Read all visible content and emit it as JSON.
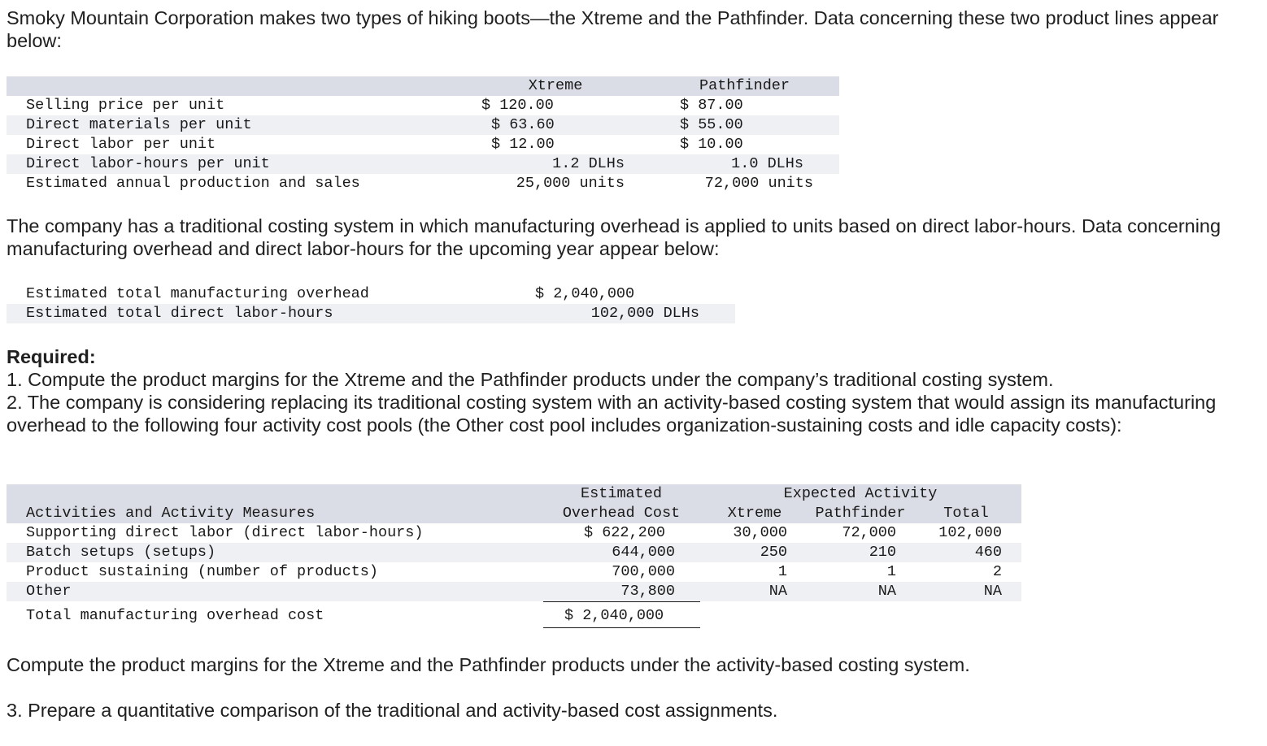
{
  "intro": "Smoky Mountain Corporation makes two types of hiking boots—the Xtreme and the Pathfinder. Data concerning these two product lines appear below:",
  "product_table": {
    "headers": [
      "Xtreme",
      "Pathfinder"
    ],
    "rows": [
      {
        "label": "Selling price per unit",
        "xtreme": "$ 120.00",
        "pathfinder": "$ 87.00"
      },
      {
        "label": "Direct materials per unit",
        "xtreme": "$ 63.60",
        "pathfinder": "$ 55.00"
      },
      {
        "label": "Direct labor per unit",
        "xtreme": "$ 12.00",
        "pathfinder": "$ 10.00"
      },
      {
        "label": "Direct labor-hours per unit",
        "xtreme": "1.2 DLHs",
        "pathfinder": "1.0 DLHs"
      },
      {
        "label": "Estimated annual production and sales",
        "xtreme": "25,000 units",
        "pathfinder": "72,000 units"
      }
    ]
  },
  "traditional_text": "The company has a traditional costing system in which manufacturing overhead is applied to units based on direct labor-hours. Data concerning manufacturing overhead and direct labor-hours for the upcoming year appear below:",
  "overhead_table": {
    "rows": [
      {
        "label": "Estimated total manufacturing overhead",
        "value": "$ 2,040,000"
      },
      {
        "label": "Estimated total direct labor-hours",
        "value": "102,000 DLHs"
      }
    ]
  },
  "required": {
    "heading": "Required:",
    "item1": "1. Compute the product margins for the Xtreme and the Pathfinder products under the company’s traditional costing system.",
    "item2": "2. The company is considering replacing its traditional costing system with an activity-based costing system that would assign its manufacturing overhead to the following four activity cost pools (the Other cost pool includes organization-sustaining costs and idle capacity costs):"
  },
  "abc_table": {
    "header": {
      "estimated": "Estimated",
      "overhead_cost": "Overhead Cost",
      "expected_activity": "Expected Activity",
      "activities": "Activities and Activity Measures",
      "xtreme": "Xtreme",
      "pathfinder": "Pathfinder",
      "total": "Total"
    },
    "rows": [
      {
        "label": "Supporting direct labor (direct labor-hours)",
        "cost": "$ 622,200",
        "xtreme": "30,000",
        "pathfinder": "72,000",
        "total": "102,000"
      },
      {
        "label": "Batch setups (setups)",
        "cost": "644,000",
        "xtreme": "250",
        "pathfinder": "210",
        "total": "460"
      },
      {
        "label": "Product sustaining (number of products)",
        "cost": "700,000",
        "xtreme": "1",
        "pathfinder": "1",
        "total": "2"
      },
      {
        "label": "Other",
        "cost": "73,800",
        "xtreme": "NA",
        "pathfinder": "NA",
        "total": "NA"
      }
    ],
    "total_row": {
      "label": "Total manufacturing overhead cost",
      "cost": "$ 2,040,000"
    }
  },
  "abc_text": "Compute the product margins for the Xtreme and the Pathfinder products under the activity-based costing system.",
  "item3": "3. Prepare a quantitative comparison of the traditional and activity-based cost assignments."
}
